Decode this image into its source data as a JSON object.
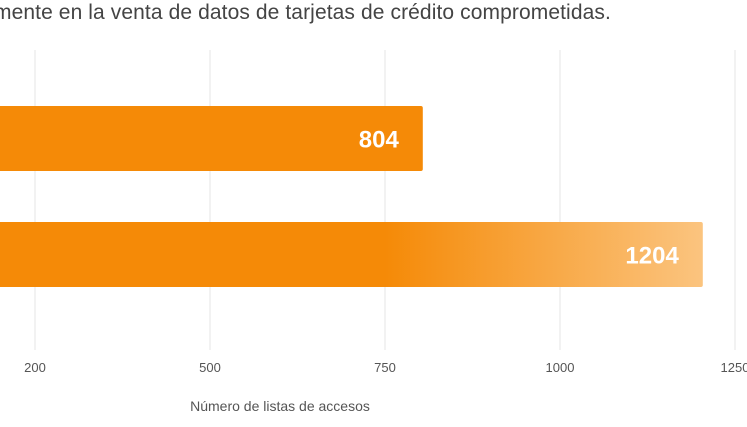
{
  "page": {
    "subtitle": "mente en la venta de datos de tarjetas de crédito comprometidas."
  },
  "chart_data": {
    "type": "bar",
    "orientation": "horizontal",
    "title": "",
    "xlabel": "Número de listas de accesos",
    "ylabel": "",
    "xlim": [
      0,
      1250
    ],
    "xticks": [
      200,
      500,
      750,
      1000,
      1250
    ],
    "xtick_labels": [
      "200",
      "500",
      "750",
      "1000",
      "1250"
    ],
    "grid": true,
    "categories": [
      "",
      ""
    ],
    "values": [
      804,
      1204
    ],
    "value_labels": [
      "804",
      "1204"
    ],
    "colors": {
      "bar": "#f58a07",
      "bar_fade": "#fbc47f",
      "grid": "#e6e6e6",
      "text": "#555555"
    }
  }
}
